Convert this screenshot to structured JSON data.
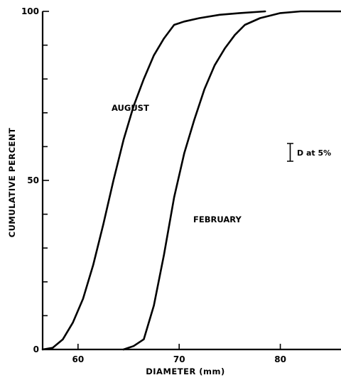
{
  "chart_data": {
    "type": "line",
    "xlabel": "DIAMETER (mm)",
    "ylabel": "CUMULATIVE PERCENT",
    "xlim": [
      56.5,
      86
    ],
    "ylim": [
      0,
      100
    ],
    "x_ticks": [
      60,
      70,
      80
    ],
    "y_ticks": [
      0,
      50,
      100
    ],
    "y_minor_step": 10,
    "grid": false,
    "series": [
      {
        "name": "AUGUST",
        "points": [
          [
            56.5,
            0
          ],
          [
            57.5,
            0.5
          ],
          [
            58.5,
            3
          ],
          [
            59.5,
            8
          ],
          [
            60.5,
            15
          ],
          [
            61.5,
            25
          ],
          [
            62.5,
            37
          ],
          [
            63.5,
            50
          ],
          [
            64.5,
            62
          ],
          [
            65.5,
            72
          ],
          [
            66.5,
            80
          ],
          [
            67.5,
            87
          ],
          [
            68.5,
            92
          ],
          [
            69.5,
            96
          ],
          [
            70.5,
            97
          ],
          [
            72,
            98
          ],
          [
            74,
            99
          ],
          [
            76,
            99.5
          ],
          [
            78.5,
            100
          ]
        ]
      },
      {
        "name": "FEBRUARY",
        "points": [
          [
            64.5,
            0
          ],
          [
            65.5,
            1
          ],
          [
            66.5,
            3
          ],
          [
            67.5,
            13
          ],
          [
            68.5,
            28
          ],
          [
            69.5,
            45
          ],
          [
            70.5,
            58
          ],
          [
            71.5,
            68
          ],
          [
            72.5,
            77
          ],
          [
            73.5,
            84
          ],
          [
            74.5,
            89
          ],
          [
            75.5,
            93
          ],
          [
            76.5,
            96
          ],
          [
            78,
            98
          ],
          [
            80,
            99.5
          ],
          [
            82,
            100
          ],
          [
            86,
            100
          ]
        ]
      }
    ],
    "annotations": {
      "error_bar_label": "D at 5%"
    }
  }
}
